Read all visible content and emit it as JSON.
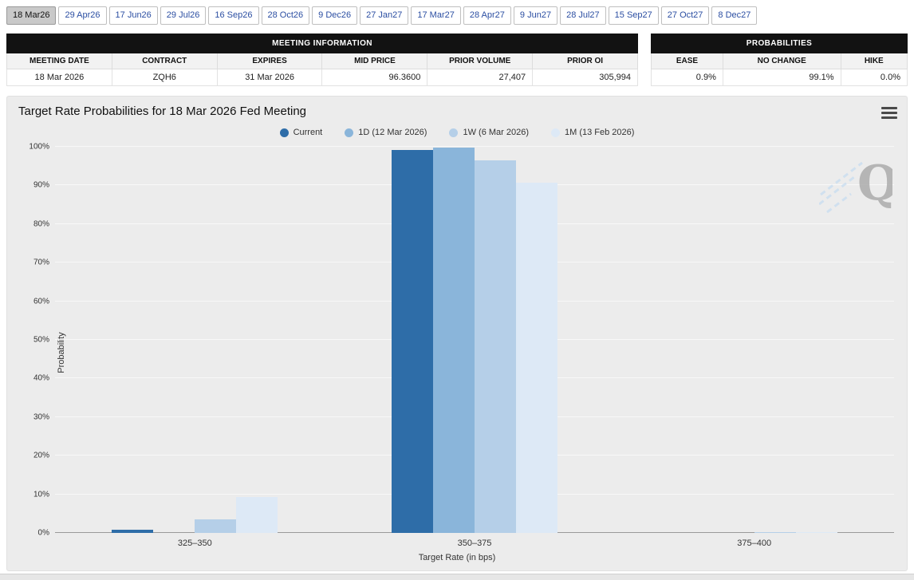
{
  "tabs": [
    {
      "label": "18 Mar26",
      "selected": true
    },
    {
      "label": "29 Apr26",
      "selected": false
    },
    {
      "label": "17 Jun26",
      "selected": false
    },
    {
      "label": "29 Jul26",
      "selected": false
    },
    {
      "label": "16 Sep26",
      "selected": false
    },
    {
      "label": "28 Oct26",
      "selected": false
    },
    {
      "label": "9 Dec26",
      "selected": false
    },
    {
      "label": "27 Jan27",
      "selected": false
    },
    {
      "label": "17 Mar27",
      "selected": false
    },
    {
      "label": "28 Apr27",
      "selected": false
    },
    {
      "label": "9 Jun27",
      "selected": false
    },
    {
      "label": "28 Jul27",
      "selected": false
    },
    {
      "label": "15 Sep27",
      "selected": false
    },
    {
      "label": "27 Oct27",
      "selected": false
    },
    {
      "label": "8 Dec27",
      "selected": false
    }
  ],
  "meeting_info": {
    "title": "MEETING INFORMATION",
    "columns": [
      "MEETING DATE",
      "CONTRACT",
      "EXPIRES",
      "MID PRICE",
      "PRIOR VOLUME",
      "PRIOR OI"
    ],
    "row": [
      "18 Mar 2026",
      "ZQH6",
      "31 Mar 2026",
      "96.3600",
      "27,407",
      "305,994"
    ]
  },
  "probabilities": {
    "title": "PROBABILITIES",
    "columns": [
      "EASE",
      "NO CHANGE",
      "HIKE"
    ],
    "row": [
      "0.9%",
      "99.1%",
      "0.0%"
    ]
  },
  "chart_data": {
    "type": "bar",
    "title": "Target Rate Probabilities for 18 Mar 2026 Fed Meeting",
    "categories": [
      "325–350",
      "350–375",
      "375–400"
    ],
    "series": [
      {
        "name": "Current",
        "color": "#2e6da8",
        "values": [
          0.9,
          99.1,
          0.0
        ]
      },
      {
        "name": "1D (12 Mar 2026)",
        "color": "#8ab5da",
        "values": [
          0.0,
          99.8,
          0.0
        ]
      },
      {
        "name": "1W (6 Mar 2026)",
        "color": "#b5cfe8",
        "values": [
          3.5,
          96.4,
          0.3
        ]
      },
      {
        "name": "1M (13 Feb 2026)",
        "color": "#dde9f6",
        "values": [
          9.2,
          90.7,
          0.3
        ]
      }
    ],
    "xlabel": "Target Rate (in bps)",
    "ylabel": "Probability",
    "ylim": [
      0,
      100
    ],
    "yticks": [
      "0%",
      "10%",
      "20%",
      "30%",
      "40%",
      "50%",
      "60%",
      "70%",
      "80%",
      "90%",
      "100%"
    ],
    "legend_position": "top",
    "grid": true
  },
  "watermark": "Q",
  "colors": {
    "table_header_bg": "#121212",
    "tab_text": "#2b4ea2",
    "selected_tab_bg": "#c9c9c9",
    "chart_bg": "#ececec"
  }
}
